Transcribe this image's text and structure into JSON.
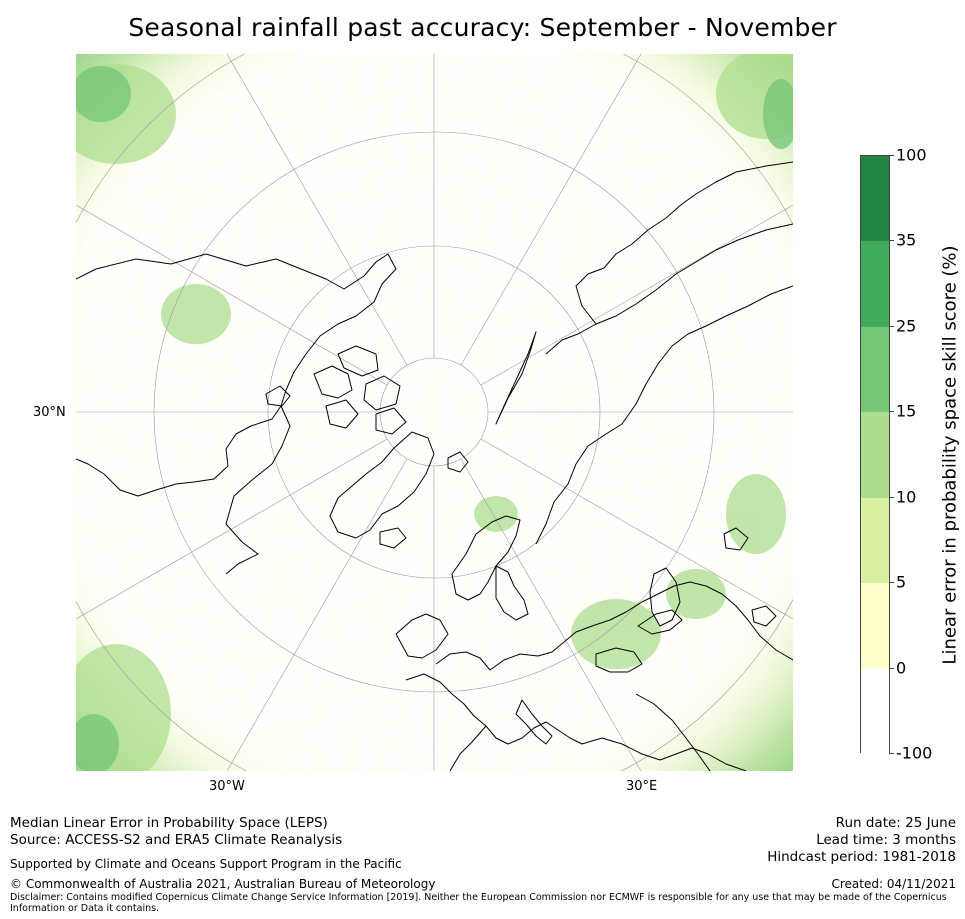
{
  "title": "Seasonal rainfall past accuracy: September - November",
  "map": {
    "projection": "north polar stereographic",
    "graticule_labels": {
      "lat": "30°N",
      "lon_west": "30°W",
      "lon_east": "30°E"
    },
    "colors": {
      "land_outline": "#000000",
      "graticule": "#9a9a9a"
    }
  },
  "colorbar": {
    "label": "Linear error in probability space skill score (%)",
    "ticks": [
      "-100",
      "0",
      "5",
      "10",
      "15",
      "25",
      "35",
      "100"
    ],
    "bins": [
      {
        "from": "-100",
        "to": "0",
        "color": "#ffffff"
      },
      {
        "from": "0",
        "to": "5",
        "color": "#ffffcc"
      },
      {
        "from": "5",
        "to": "10",
        "color": "#d9f0a3"
      },
      {
        "from": "10",
        "to": "15",
        "color": "#addd8e"
      },
      {
        "from": "15",
        "to": "25",
        "color": "#78c679"
      },
      {
        "from": "25",
        "to": "35",
        "color": "#41ab5d"
      },
      {
        "from": "35",
        "to": "100",
        "color": "#238443"
      }
    ]
  },
  "footer": {
    "left_line1": "Median Linear Error in Probability Space (LEPS)",
    "left_line2": "Source: ACCESS-S2 and ERA5 Climate Reanalysis",
    "support": "Supported by Climate and Oceans Support Program in the Pacific",
    "copyright": "© Commonwealth of Australia 2021, Australian Bureau of Meteorology",
    "disclaimer": "Disclaimer: Contains modified Copernicus Climate Change Service Information [2019]. Neither the European Commission nor ECMWF is responsible for any use that may be made of the Copernicus Information or Data it contains.",
    "run_date": "Run date: 25 June",
    "lead_time": "Lead time: 3 months",
    "hindcast": "Hindcast period: 1981-2018",
    "created": "Created: 04/11/2021"
  }
}
